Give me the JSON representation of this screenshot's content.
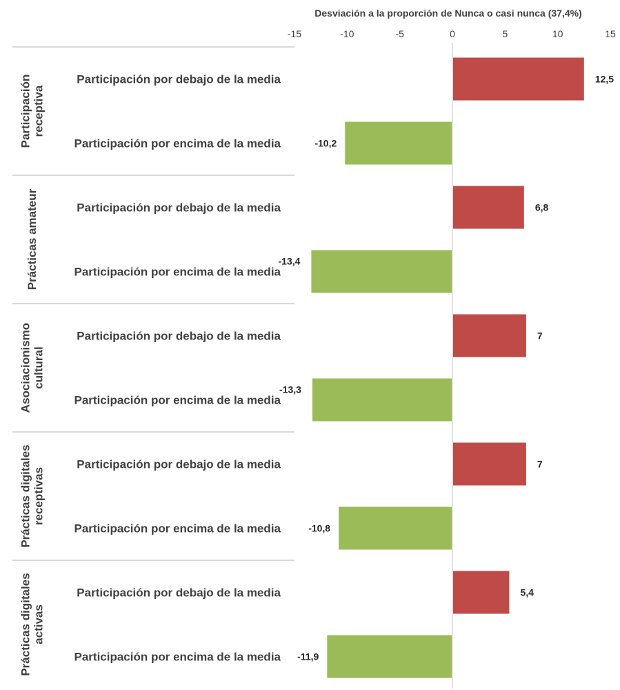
{
  "chart_data": {
    "type": "bar",
    "orientation": "horizontal",
    "title": "Desviación  a la proporción de Nunca o casi nunca (37,4%)",
    "xlim": [
      -15,
      15
    ],
    "x_ticks": [
      "-15",
      "-10",
      "-5",
      "0",
      "5",
      "10",
      "15"
    ],
    "axis_position": "top",
    "grid": false,
    "legend": "none",
    "colors": {
      "positive": "#be4b48",
      "negative": "#9bbb59",
      "separator": "#d9d9d9",
      "zero_line": "#d9d9d9"
    },
    "groups": [
      {
        "name": "Participación receptiva",
        "name_lines": [
          "Participación",
          "receptiva"
        ],
        "bars": [
          {
            "label": "Participación por  debajo de la media",
            "value": 12.5,
            "value_label": "12,5"
          },
          {
            "label": "Participación por  encima de la media",
            "value": -10.2,
            "value_label": "-10,2"
          }
        ]
      },
      {
        "name": "Prácticas amateur",
        "name_lines": [
          "Prácticas amateur"
        ],
        "bars": [
          {
            "label": "Participación por  debajo de la media",
            "value": 6.8,
            "value_label": "6,8"
          },
          {
            "label": "Participación por  encima de la media",
            "value": -13.4,
            "value_label": "-13,4"
          }
        ]
      },
      {
        "name": "Asociacionismo cultural",
        "name_lines": [
          "Asociacionismo",
          "cultural"
        ],
        "bars": [
          {
            "label": "Participación por  debajo de la media",
            "value": 7,
            "value_label": "7"
          },
          {
            "label": "Participación por  encima de la media",
            "value": -13.3,
            "value_label": "-13,3"
          }
        ]
      },
      {
        "name": "Prácticas digitales receptivas",
        "name_lines": [
          "Prácticas digitales",
          "receptivas"
        ],
        "bars": [
          {
            "label": "Participación por  debajo de la media",
            "value": 7,
            "value_label": "7"
          },
          {
            "label": "Participación por  encima de la media",
            "value": -10.8,
            "value_label": "-10,8"
          }
        ]
      },
      {
        "name": "Prácticas digitales activas",
        "name_lines": [
          "Prácticas digitales",
          "activas"
        ],
        "bars": [
          {
            "label": "Participación por  debajo de la media",
            "value": 5.4,
            "value_label": "5,4"
          },
          {
            "label": "Participación por  encima de la media",
            "value": -11.9,
            "value_label": "-11,9"
          }
        ]
      }
    ]
  }
}
